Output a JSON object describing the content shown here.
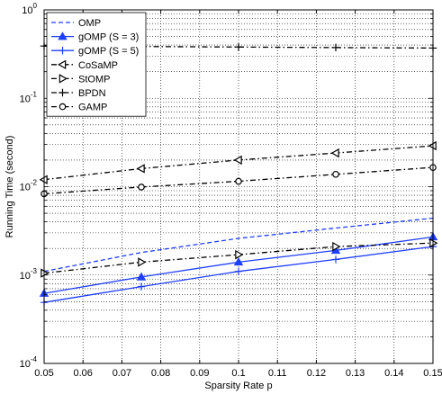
{
  "chart_data": {
    "type": "line",
    "title": "",
    "xlabel": "Sparsity Rate p",
    "ylabel": "Running Time (second)",
    "xscale": "linear",
    "yscale": "log",
    "xlim": [
      0.05,
      0.15
    ],
    "ylim": [
      0.0001,
      1
    ],
    "xticks": [
      0.05,
      0.06,
      0.07,
      0.08,
      0.09,
      0.1,
      0.11,
      0.12,
      0.13,
      0.14,
      0.15
    ],
    "xtick_labels": [
      "0.05",
      "0.06",
      "0.07",
      "0.08",
      "0.09",
      "0.1",
      "0.11",
      "0.12",
      "0.13",
      "0.14",
      "0.15"
    ],
    "yticks": [
      {
        "base": "10",
        "exp": "-4"
      },
      {
        "base": "10",
        "exp": "-3"
      },
      {
        "base": "10",
        "exp": "-2"
      },
      {
        "base": "10",
        "exp": "-1"
      },
      {
        "base": "10",
        "exp": "0"
      }
    ],
    "grid": "dotted",
    "legend_position": "top-left",
    "series": [
      {
        "name": "OMP",
        "color": "#1f3fff",
        "dash": "dashed",
        "marker": "none",
        "x": [
          0.05,
          0.075,
          0.1,
          0.125,
          0.15
        ],
        "y": [
          0.0011,
          0.0018,
          0.0026,
          0.0034,
          0.0044
        ]
      },
      {
        "name": "gOMP (S = 3)",
        "color": "#1f3fff",
        "dash": "solid",
        "marker": "triangle-up",
        "x": [
          0.05,
          0.075,
          0.1,
          0.125,
          0.15
        ],
        "y": [
          0.00062,
          0.00095,
          0.0014,
          0.0019,
          0.0027
        ]
      },
      {
        "name": "gOMP (S = 5)",
        "color": "#1f3fff",
        "dash": "solid",
        "marker": "plus",
        "x": [
          0.05,
          0.075,
          0.1,
          0.125,
          0.15
        ],
        "y": [
          0.00049,
          0.00074,
          0.0011,
          0.0015,
          0.0021
        ]
      },
      {
        "name": "CoSaMP",
        "color": "#000000",
        "dash": "dashdot",
        "marker": "triangle-left",
        "x": [
          0.05,
          0.075,
          0.1,
          0.125,
          0.15
        ],
        "y": [
          0.012,
          0.016,
          0.02,
          0.024,
          0.029
        ]
      },
      {
        "name": "StOMP",
        "color": "#000000",
        "dash": "dashdot",
        "marker": "triangle-right",
        "x": [
          0.05,
          0.075,
          0.1,
          0.125,
          0.15
        ],
        "y": [
          0.00105,
          0.0014,
          0.0017,
          0.0021,
          0.0023
        ]
      },
      {
        "name": "BPDN",
        "color": "#000000",
        "dash": "dashdot",
        "marker": "plus",
        "x": [
          0.05,
          0.075,
          0.1,
          0.125,
          0.15
        ],
        "y": [
          0.39,
          0.385,
          0.38,
          0.375,
          0.37
        ]
      },
      {
        "name": "GAMP",
        "color": "#000000",
        "dash": "dashdot",
        "marker": "circle",
        "x": [
          0.05,
          0.075,
          0.1,
          0.125,
          0.15
        ],
        "y": [
          0.0083,
          0.0099,
          0.0115,
          0.0138,
          0.0165
        ]
      }
    ]
  }
}
